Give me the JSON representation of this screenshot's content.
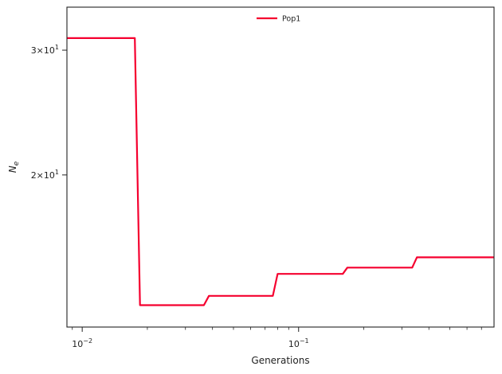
{
  "chart_data": {
    "type": "line",
    "title": "",
    "xlabel": "Generations",
    "ylabel": "N_e",
    "xscale": "log",
    "yscale": "log",
    "xlim": [
      0.0085,
      0.8
    ],
    "ylim": [
      12.2,
      34.5
    ],
    "x_major_ticks": [
      {
        "value": 0.01,
        "label": "10",
        "exp": "−2"
      },
      {
        "value": 0.1,
        "label": "10",
        "exp": "−1"
      }
    ],
    "x_minor_ticks": [
      0.009,
      0.02,
      0.03,
      0.04,
      0.05,
      0.06,
      0.07,
      0.08,
      0.09,
      0.2,
      0.3,
      0.4,
      0.5,
      0.6,
      0.7,
      0.8
    ],
    "y_ticks": [
      {
        "value": 30,
        "label": "3×10",
        "exp": "1"
      },
      {
        "value": 20,
        "label": "2×10",
        "exp": "1"
      }
    ],
    "legend_position": "top-center",
    "series": [
      {
        "name": "Pop1",
        "color": "#f5002f",
        "x": [
          0.0085,
          0.0175,
          0.0185,
          0.0365,
          0.0385,
          0.076,
          0.08,
          0.16,
          0.168,
          0.335,
          0.352,
          0.8
        ],
        "y": [
          31.2,
          31.2,
          13.1,
          13.1,
          13.5,
          13.5,
          14.5,
          14.5,
          14.8,
          14.8,
          15.3,
          15.3
        ]
      }
    ]
  }
}
